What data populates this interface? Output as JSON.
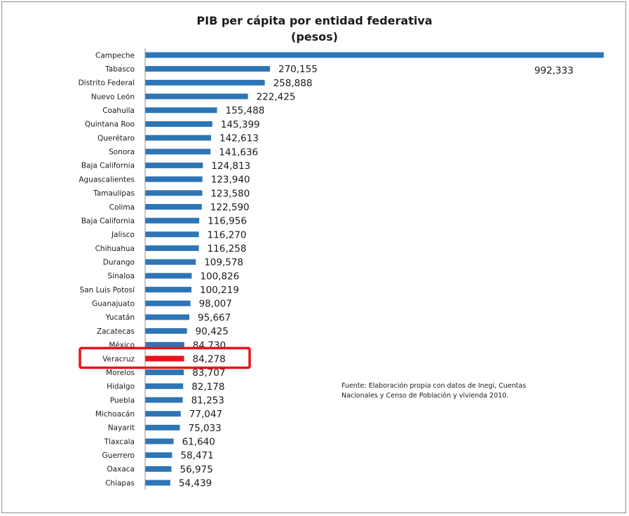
{
  "chart_data": {
    "type": "bar",
    "orientation": "horizontal",
    "title": "PIB per cápita por entidad federativa",
    "subtitle": "(pesos)",
    "categories": [
      "Campeche",
      "Tabasco",
      "Distrito Federal",
      "Nuevo León",
      "Coahuila",
      "Quintana Roo",
      "Querétaro",
      "Sonora",
      "Baja California",
      "Aguascalientes",
      "Tamaulipas",
      "Colima",
      "Baja California",
      "Jalisco",
      "Chihuahua",
      "Durango",
      "Sinaloa",
      "San Luis Potosí",
      "Guanajuato",
      "Yucatán",
      "Zacatecas",
      "México",
      "Veracruz",
      "Morelos",
      "Hidalgo",
      "Puebla",
      "Michoacán",
      "Nayarit",
      "Tlaxcala",
      "Guerrero",
      "Oaxaca",
      "Chiapas"
    ],
    "values": [
      992333,
      270155,
      258888,
      222425,
      155488,
      145399,
      142613,
      141636,
      124813,
      123940,
      123580,
      122590,
      116956,
      116270,
      116258,
      109578,
      100826,
      100219,
      98007,
      95667,
      90425,
      84730,
      84278,
      83707,
      82178,
      81253,
      77047,
      75033,
      61640,
      58471,
      56975,
      54439
    ],
    "value_labels": [
      "992,333",
      "270,155",
      "258,888",
      "222,425",
      "155,488",
      "145,399",
      "142,613",
      "141,636",
      "124,813",
      "123,940",
      "123,580",
      "122,590",
      "116,956",
      "116,270",
      "116,258",
      "109,578",
      "100,826",
      "100,219",
      "98,007",
      "95,667",
      "90,425",
      "84,730",
      "84,278",
      "83,707",
      "82,178",
      "81,253",
      "77,047",
      "75,033",
      "61,640",
      "58,471",
      "56,975",
      "54,439"
    ],
    "xlim": [
      0,
      992333
    ],
    "grid": false,
    "colors": {
      "bar": "#2e75b6",
      "highlight_bar": "#e8141b",
      "highlight_box": "#e8141b"
    },
    "highlighted_category": "Veracruz",
    "source": "Fuente: Elaboración propia con datos de Inegi, Cuentas Nacionales y Censo de Población y vivienda 2010."
  }
}
